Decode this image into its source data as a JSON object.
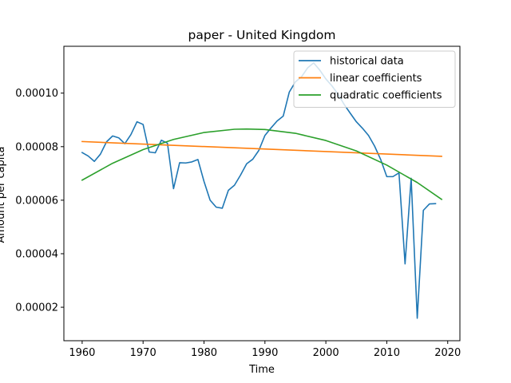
{
  "chart_data": {
    "type": "line",
    "title": "paper - United Kingdom",
    "xlabel": "Time",
    "ylabel": "Amount per capita",
    "xlim": [
      1957,
      2022
    ],
    "ylim": [
      7.5e-06,
      0.0001175
    ],
    "xticks": [
      1960,
      1970,
      1980,
      1990,
      2000,
      2010,
      2020
    ],
    "xtick_labels": [
      "1960",
      "1970",
      "1980",
      "1990",
      "2000",
      "2010",
      "2020"
    ],
    "yticks": [
      2e-05,
      4e-05,
      6e-05,
      8e-05,
      0.0001
    ],
    "ytick_labels": [
      "0.00002",
      "0.00004",
      "0.00006",
      "0.00008",
      "0.00010"
    ],
    "grid": false,
    "legend_position": "top-right",
    "series": [
      {
        "name": "historical data",
        "color": "#1f77b4",
        "x": [
          1960,
          1961,
          1962,
          1963,
          1964,
          1965,
          1966,
          1967,
          1968,
          1969,
          1970,
          1971,
          1972,
          1973,
          1974,
          1975,
          1976,
          1977,
          1978,
          1979,
          1980,
          1981,
          1982,
          1983,
          1984,
          1985,
          1986,
          1987,
          1988,
          1989,
          1990,
          1991,
          1992,
          1993,
          1994,
          1995,
          1996,
          1997,
          1998,
          1999,
          2000,
          2001,
          2002,
          2003,
          2004,
          2005,
          2006,
          2007,
          2008,
          2009,
          2010,
          2011,
          2012,
          2013,
          2014,
          2015,
          2016,
          2017,
          2018
        ],
        "y": [
          7.78e-05,
          7.65e-05,
          7.45e-05,
          7.72e-05,
          8.18e-05,
          8.4e-05,
          8.33e-05,
          8.11e-05,
          8.45e-05,
          8.93e-05,
          8.83e-05,
          7.8e-05,
          7.77e-05,
          8.24e-05,
          8.13e-05,
          6.43e-05,
          7.4e-05,
          7.39e-05,
          7.43e-05,
          7.52e-05,
          6.7e-05,
          6e-05,
          5.74e-05,
          5.7e-05,
          6.37e-05,
          6.56e-05,
          6.94e-05,
          7.36e-05,
          7.53e-05,
          7.86e-05,
          8.42e-05,
          8.7e-05,
          8.96e-05,
          9.14e-05,
          0.0001004,
          0.0001042,
          0.0001061,
          0.0001094,
          0.0001113,
          0.0001086,
          0.0001053,
          0.0001027,
          9.96e-05,
          9.58e-05,
          9.25e-05,
          8.93e-05,
          8.69e-05,
          8.42e-05,
          8.02e-05,
          7.52e-05,
          6.88e-05,
          6.88e-05,
          7.02e-05,
          3.62e-05,
          6.82e-05,
          1.59e-05,
          5.62e-05,
          5.86e-05,
          5.87e-05
        ]
      },
      {
        "name": "linear coefficients",
        "color": "#ff7f0e",
        "x": [
          1960,
          2019
        ],
        "y": [
          8.19e-05,
          7.64e-05
        ]
      },
      {
        "name": "quadratic coefficients",
        "color": "#2ca02c",
        "x": [
          1960,
          1965,
          1970,
          1975,
          1980,
          1985,
          1987,
          1990,
          1995,
          2000,
          2005,
          2010,
          2015,
          2019
        ],
        "y": [
          6.75e-05,
          7.38e-05,
          7.89e-05,
          8.27e-05,
          8.53e-05,
          8.65e-05,
          8.66e-05,
          8.64e-05,
          8.5e-05,
          8.23e-05,
          7.84e-05,
          7.31e-05,
          6.66e-05,
          6.03e-05
        ]
      }
    ]
  }
}
